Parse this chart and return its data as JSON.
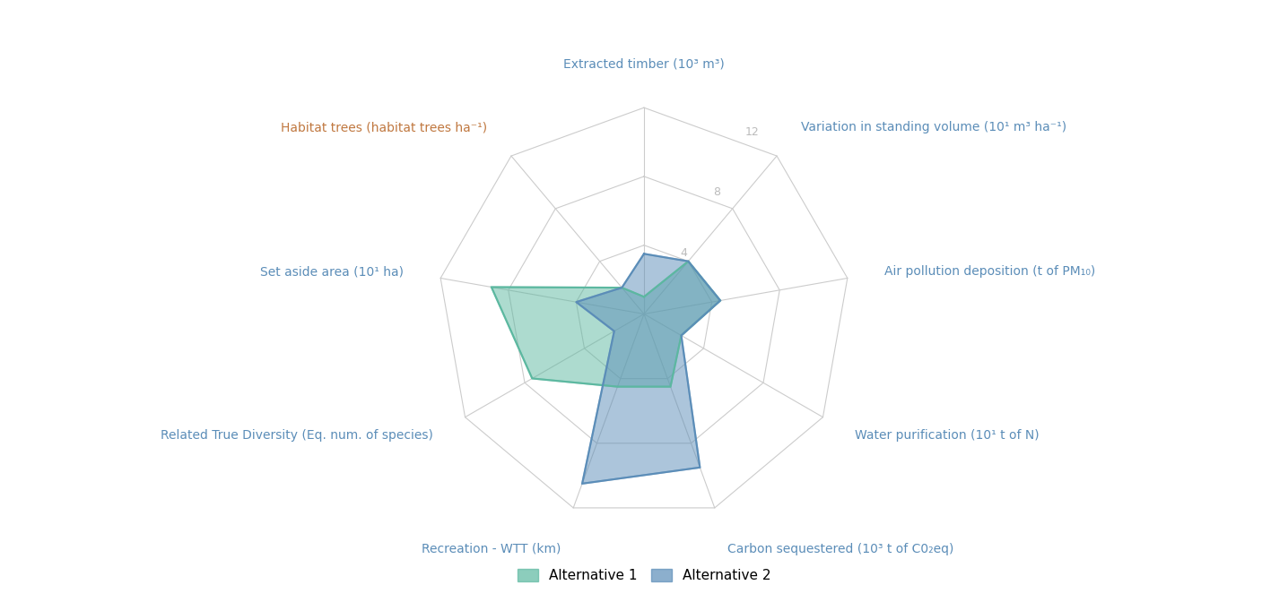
{
  "categories": [
    "Extracted timber (10³ m³)",
    "Variation in standing volume (10¹ m³ ha⁻¹)",
    "Air pollution deposition (t of PM₁₀)",
    "Water purification (10¹ t of N)",
    "Carbon sequestered (10³ t of C0₂eq)",
    "Recreation - WTT (km)",
    "Related True Diversity (Eq. num. of species)",
    "Set aside area (10¹ ha)",
    "Habitat trees (habitat trees ha⁻¹)"
  ],
  "alt1_values": [
    1.0,
    4.0,
    4.5,
    2.5,
    4.5,
    4.5,
    7.5,
    9.0,
    2.0
  ],
  "alt2_values": [
    3.5,
    4.0,
    4.5,
    2.5,
    9.5,
    10.5,
    2.0,
    4.0,
    2.0
  ],
  "max_value": 12,
  "grid_values": [
    4,
    8,
    12
  ],
  "alt1_color": "#5cb8a0",
  "alt2_color": "#5b8db8",
  "alt1_label": "Alternative 1",
  "alt2_label": "Alternative 2",
  "background_color": "#ffffff",
  "grid_color": "#cccccc",
  "label_color_default": "#5b8db8",
  "label_color_orange": "#c07840",
  "tick_label_color": "#bbbbbb",
  "figsize": [
    14.36,
    6.72
  ],
  "dpi": 100,
  "label_fontsize": 10,
  "legend_fontsize": 11
}
